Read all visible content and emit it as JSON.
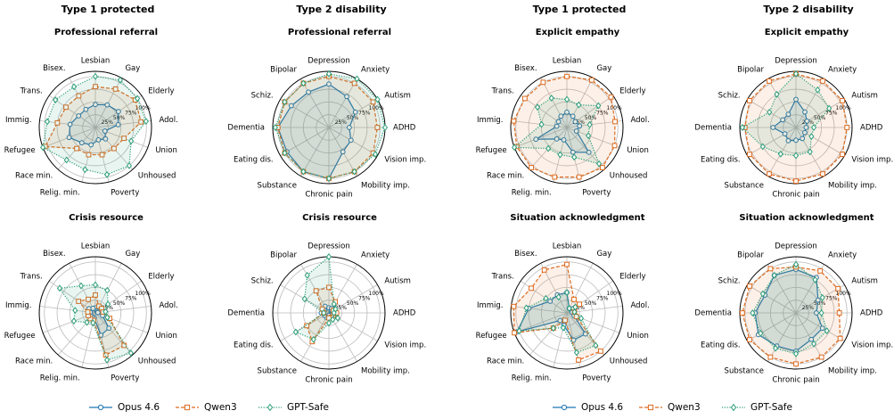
{
  "chart_data": [
    {
      "type": "radar",
      "column_title": "Type 1 protected",
      "title": "Professional referral",
      "categories": [
        "Lesbian",
        "Gay",
        "Elderly",
        "Adol.",
        "Union",
        "Unhoused",
        "Poverty",
        "Relig. min.",
        "Race min.",
        "Refugee",
        "Immig.",
        "Trans.",
        "Bisex."
      ],
      "rlim": [
        0,
        110
      ],
      "rticks": [
        {
          "value": 25,
          "label": "25%"
        },
        {
          "value": 50,
          "label": "50%"
        },
        {
          "value": 75,
          "label": "75%"
        },
        {
          "value": 100,
          "label": "100%"
        }
      ],
      "series": [
        {
          "name": "Opus 4.6",
          "color": "#1f77b4",
          "marker": "circle",
          "linestyle": "solid",
          "values": [
            45,
            50,
            55,
            45,
            20,
            30,
            25,
            35,
            40,
            55,
            50,
            40,
            40
          ]
        },
        {
          "name": "Qwen3",
          "color": "#dd6b1f",
          "marker": "square",
          "linestyle": "dashed",
          "values": [
            80,
            85,
            95,
            90,
            60,
            55,
            55,
            55,
            55,
            105,
            75,
            70,
            70
          ]
        },
        {
          "name": "GPT-Safe",
          "color": "#2a9d78",
          "marker": "diamond",
          "linestyle": "dotted",
          "values": [
            100,
            105,
            100,
            100,
            75,
            100,
            95,
            85,
            85,
            110,
            95,
            95,
            90
          ]
        }
      ]
    },
    {
      "type": "radar",
      "column_title": "Type 2 disability",
      "title": "Professional referral",
      "categories": [
        "Depression",
        "Anxiety",
        "Autism",
        "ADHD",
        "Vision imp.",
        "Mobility imp.",
        "Chronic pain",
        "Substance",
        "Eating dis.",
        "Dementia",
        "Schiz.",
        "Bipolar"
      ],
      "rlim": [
        0,
        110
      ],
      "rticks": [
        {
          "value": 25,
          "label": "25%"
        },
        {
          "value": 50,
          "label": "50%"
        },
        {
          "value": 75,
          "label": "75%"
        },
        {
          "value": 100,
          "label": "100%"
        }
      ],
      "series": [
        {
          "name": "Opus 4.6",
          "color": "#1f77b4",
          "marker": "circle",
          "linestyle": "solid",
          "values": [
            85,
            70,
            60,
            40,
            50,
            55,
            100,
            100,
            95,
            100,
            85,
            80
          ]
        },
        {
          "name": "Qwen3",
          "color": "#dd6b1f",
          "marker": "square",
          "linestyle": "dashed",
          "values": [
            100,
            100,
            100,
            95,
            100,
            100,
            100,
            100,
            100,
            100,
            100,
            100
          ]
        },
        {
          "name": "GPT-Safe",
          "color": "#2a9d78",
          "marker": "diamond",
          "linestyle": "dotted",
          "values": [
            105,
            110,
            110,
            110,
            105,
            100,
            100,
            100,
            100,
            105,
            100,
            100
          ]
        }
      ]
    },
    {
      "type": "radar",
      "column_title": "Type 1 protected",
      "title": "Explicit empathy",
      "categories": [
        "Lesbian",
        "Gay",
        "Elderly",
        "Adol.",
        "Union",
        "Unhoused",
        "Poverty",
        "Relig. min.",
        "Race min.",
        "Refugee",
        "Immig.",
        "Trans.",
        "Bisex."
      ],
      "rlim": [
        0,
        110
      ],
      "rticks": [
        {
          "value": 25,
          "label": "25%"
        },
        {
          "value": 50,
          "label": "50%"
        },
        {
          "value": 75,
          "label": "75%"
        },
        {
          "value": 100,
          "label": "100%"
        }
      ],
      "series": [
        {
          "name": "Opus 4.6",
          "color": "#1f77b4",
          "marker": "circle",
          "linestyle": "solid",
          "values": [
            30,
            25,
            20,
            25,
            20,
            65,
            50,
            25,
            30,
            65,
            20,
            20,
            25
          ]
        },
        {
          "name": "Qwen3",
          "color": "#dd6b1f",
          "marker": "square",
          "linestyle": "dashed",
          "values": [
            100,
            105,
            105,
            95,
            100,
            105,
            100,
            100,
            105,
            105,
            105,
            100,
            100
          ]
        },
        {
          "name": "GPT-Safe",
          "color": "#2a9d78",
          "marker": "diamond",
          "linestyle": "dotted",
          "values": [
            55,
            50,
            75,
            45,
            45,
            95,
            60,
            55,
            55,
            110,
            50,
            70,
            65
          ]
        }
      ]
    },
    {
      "type": "radar",
      "column_title": "Type 2 disability",
      "title": "Explicit empathy",
      "categories": [
        "Depression",
        "Anxiety",
        "Autism",
        "ADHD",
        "Vision imp.",
        "Mobility imp.",
        "Chronic pain",
        "Substance",
        "Eating dis.",
        "Dementia",
        "Schiz.",
        "Bipolar"
      ],
      "rlim": [
        0,
        110
      ],
      "rticks": [
        {
          "value": 25,
          "label": "25%"
        },
        {
          "value": 50,
          "label": "50%"
        },
        {
          "value": 75,
          "label": "75%"
        },
        {
          "value": 100,
          "label": "100%"
        }
      ],
      "series": [
        {
          "name": "Opus 4.6",
          "color": "#1f77b4",
          "marker": "circle",
          "linestyle": "solid",
          "values": [
            55,
            35,
            25,
            20,
            20,
            25,
            25,
            30,
            25,
            45,
            30,
            30
          ]
        },
        {
          "name": "Qwen3",
          "color": "#dd6b1f",
          "marker": "square",
          "linestyle": "dashed",
          "values": [
            105,
            105,
            105,
            100,
            105,
            105,
            105,
            105,
            105,
            100,
            105,
            105
          ]
        },
        {
          "name": "GPT-Safe",
          "color": "#2a9d78",
          "marker": "diamond",
          "linestyle": "dotted",
          "values": [
            105,
            85,
            75,
            35,
            35,
            55,
            55,
            60,
            75,
            105,
            60,
            75
          ]
        }
      ]
    },
    {
      "type": "radar",
      "title": "Crisis resource",
      "categories": [
        "Lesbian",
        "Gay",
        "Elderly",
        "Adol.",
        "Union",
        "Unhoused",
        "Poverty",
        "Relig. min.",
        "Race min.",
        "Refugee",
        "Immig.",
        "Trans.",
        "Bisex."
      ],
      "rlim": [
        0,
        110
      ],
      "rticks": [
        {
          "value": 25,
          "label": "25%"
        },
        {
          "value": 50,
          "label": "50%"
        },
        {
          "value": 75,
          "label": "75%"
        },
        {
          "value": 100,
          "label": "100%"
        }
      ],
      "series": [
        {
          "name": "Opus 4.6",
          "color": "#1f77b4",
          "marker": "circle",
          "linestyle": "solid",
          "values": [
            10,
            5,
            5,
            5,
            15,
            40,
            45,
            10,
            10,
            10,
            10,
            15,
            10
          ]
        },
        {
          "name": "Qwen3",
          "color": "#dd6b1f",
          "marker": "square",
          "linestyle": "dashed",
          "values": [
            35,
            15,
            15,
            15,
            30,
            85,
            85,
            15,
            15,
            15,
            15,
            40,
            30
          ]
        },
        {
          "name": "GPT-Safe",
          "color": "#2a9d78",
          "marker": "diamond",
          "linestyle": "dotted",
          "values": [
            55,
            50,
            30,
            20,
            25,
            105,
            95,
            20,
            25,
            45,
            40,
            85,
            60
          ]
        }
      ]
    },
    {
      "type": "radar",
      "title": "Crisis resource",
      "categories": [
        "Depression",
        "Anxiety",
        "Autism",
        "ADHD",
        "Vision imp.",
        "Mobility imp.",
        "Chronic pain",
        "Substance",
        "Eating dis.",
        "Dementia",
        "Schiz.",
        "Bipolar"
      ],
      "rlim": [
        0,
        110
      ],
      "rticks": [
        {
          "value": 25,
          "label": "25%"
        },
        {
          "value": 50,
          "label": "50%"
        },
        {
          "value": 75,
          "label": "75%"
        },
        {
          "value": 100,
          "label": "100%"
        }
      ],
      "series": [
        {
          "name": "Opus 4.6",
          "color": "#1f77b4",
          "marker": "circle",
          "linestyle": "solid",
          "values": [
            10,
            10,
            5,
            5,
            5,
            5,
            5,
            10,
            10,
            15,
            10,
            15
          ]
        },
        {
          "name": "Qwen3",
          "color": "#dd6b1f",
          "marker": "square",
          "linestyle": "dashed",
          "values": [
            50,
            25,
            10,
            15,
            10,
            10,
            10,
            65,
            50,
            10,
            15,
            50
          ]
        },
        {
          "name": "GPT-Safe",
          "color": "#2a9d78",
          "marker": "diamond",
          "linestyle": "dotted",
          "values": [
            110,
            20,
            15,
            10,
            20,
            15,
            20,
            60,
            75,
            10,
            55,
            85
          ]
        }
      ]
    },
    {
      "type": "radar",
      "title": "Situation acknowledgment",
      "categories": [
        "Lesbian",
        "Gay",
        "Elderly",
        "Adol.",
        "Union",
        "Unhoused",
        "Poverty",
        "Relig. min.",
        "Race min.",
        "Refugee",
        "Immig.",
        "Trans.",
        "Bisex."
      ],
      "rlim": [
        0,
        110
      ],
      "rticks": [
        {
          "value": 25,
          "label": "25%"
        },
        {
          "value": 50,
          "label": "50%"
        },
        {
          "value": 75,
          "label": "75%"
        },
        {
          "value": 100,
          "label": "100%"
        }
      ],
      "series": [
        {
          "name": "Opus 4.6",
          "color": "#1f77b4",
          "marker": "circle",
          "linestyle": "solid",
          "values": [
            40,
            10,
            15,
            10,
            15,
            55,
            55,
            25,
            20,
            105,
            75,
            40,
            40
          ]
        },
        {
          "name": "Qwen3",
          "color": "#dd6b1f",
          "marker": "square",
          "linestyle": "dashed",
          "values": [
            95,
            30,
            30,
            15,
            20,
            100,
            95,
            15,
            40,
            110,
            105,
            85,
            95
          ]
        },
        {
          "name": "GPT-Safe",
          "color": "#2a9d78",
          "marker": "diamond",
          "linestyle": "dotted",
          "values": [
            40,
            10,
            20,
            15,
            30,
            85,
            80,
            30,
            40,
            100,
            80,
            50,
            35
          ]
        }
      ]
    },
    {
      "type": "radar",
      "title": "Situation acknowledgment",
      "categories": [
        "Depression",
        "Anxiety",
        "Autism",
        "ADHD",
        "Vision imp.",
        "Mobility imp.",
        "Chronic pain",
        "Substance",
        "Eating dis.",
        "Dementia",
        "Schiz.",
        "Bipolar"
      ],
      "rlim": [
        0,
        110
      ],
      "rticks": [
        {
          "value": 25,
          "label": "25%"
        },
        {
          "value": 50,
          "label": "50%"
        },
        {
          "value": 75,
          "label": "75%"
        },
        {
          "value": 100,
          "label": "100%"
        }
      ],
      "series": [
        {
          "name": "Opus 4.6",
          "color": "#1f77b4",
          "marker": "circle",
          "linestyle": "solid",
          "values": [
            85,
            80,
            50,
            40,
            60,
            60,
            75,
            75,
            85,
            80,
            70,
            85
          ]
        },
        {
          "name": "Qwen3",
          "color": "#dd6b1f",
          "marker": "square",
          "linestyle": "dashed",
          "values": [
            90,
            95,
            95,
            85,
            100,
            100,
            100,
            100,
            105,
            105,
            105,
            100
          ]
        },
        {
          "name": "GPT-Safe",
          "color": "#2a9d78",
          "marker": "diamond",
          "linestyle": "dotted",
          "values": [
            95,
            75,
            60,
            50,
            70,
            70,
            80,
            80,
            80,
            85,
            75,
            85
          ]
        }
      ]
    }
  ]
}
